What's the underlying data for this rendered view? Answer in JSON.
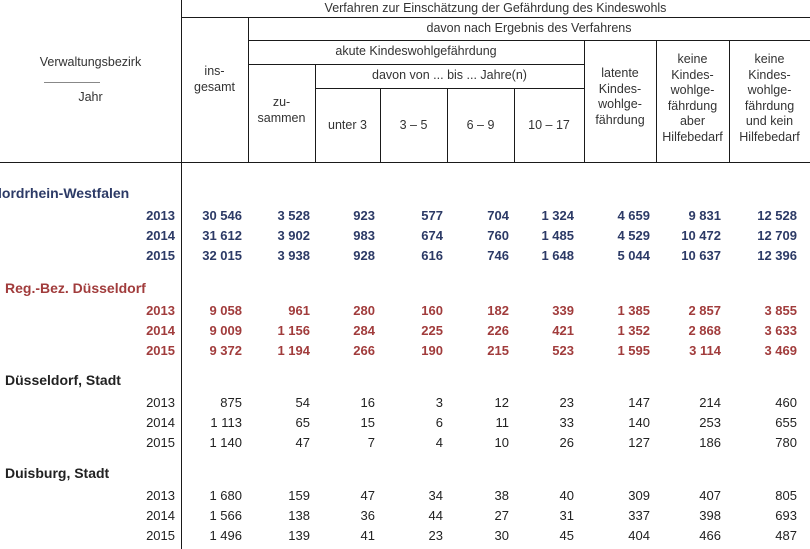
{
  "header": {
    "verwaltungsbezirk": "Verwaltungsbezirk",
    "jahr": "Jahr",
    "top": "Verfahren zur Einschätzung der Gefährdung des Kindeswohls",
    "davon_ergebnis": "davon nach Ergebnis des Verfahrens",
    "akute": "akute Kindeswohlgefährdung",
    "davon_jahre": "davon von ... bis ... Jahre(n)",
    "insgesamt": "ins-\ngesamt",
    "zusammen": "zu-\nsammen",
    "ages": [
      "unter 3",
      "3 – 5",
      "6 – 9",
      "10 – 17"
    ],
    "latente": "latente\nKindes-\nwohlge-\nfährdung",
    "keine_aber": "keine\nKindes-\nwohlge-\nfährdung\naber\nHilfebedarf",
    "keine_kein": "keine\nKindes-\nwohlge-\nfährdung\nund kein\nHilfebedarf"
  },
  "sections": [
    {
      "name": "lordrhein-Westfalen",
      "style": "blue",
      "rows": [
        {
          "year": "2013",
          "values": [
            "30 546",
            "3 528",
            "923",
            "577",
            "704",
            "1 324",
            "4 659",
            "9 831",
            "12 528"
          ]
        },
        {
          "year": "2014",
          "values": [
            "31 612",
            "3 902",
            "983",
            "674",
            "760",
            "1 485",
            "4 529",
            "10 472",
            "12 709"
          ]
        },
        {
          "year": "2015",
          "values": [
            "32 015",
            "3 938",
            "928",
            "616",
            "746",
            "1 648",
            "5 044",
            "10 637",
            "12 396"
          ]
        }
      ]
    },
    {
      "name": "Reg.-Bez. Düsseldorf",
      "style": "red",
      "rows": [
        {
          "year": "2013",
          "values": [
            "9 058",
            "961",
            "280",
            "160",
            "182",
            "339",
            "1 385",
            "2 857",
            "3 855"
          ]
        },
        {
          "year": "2014",
          "values": [
            "9 009",
            "1 156",
            "284",
            "225",
            "226",
            "421",
            "1 352",
            "2 868",
            "3 633"
          ]
        },
        {
          "year": "2015",
          "values": [
            "9 372",
            "1 194",
            "266",
            "190",
            "215",
            "523",
            "1 595",
            "3 114",
            "3 469"
          ]
        }
      ]
    },
    {
      "name": "Düsseldorf, Stadt",
      "style": "plain",
      "rows": [
        {
          "year": "2013",
          "values": [
            "875",
            "54",
            "16",
            "3",
            "12",
            "23",
            "147",
            "214",
            "460"
          ]
        },
        {
          "year": "2014",
          "values": [
            "1 113",
            "65",
            "15",
            "6",
            "11",
            "33",
            "140",
            "253",
            "655"
          ]
        },
        {
          "year": "2015",
          "values": [
            "1 140",
            "47",
            "7",
            "4",
            "10",
            "26",
            "127",
            "186",
            "780"
          ]
        }
      ]
    },
    {
      "name": "Duisburg, Stadt",
      "style": "plain",
      "rows": [
        {
          "year": "2013",
          "values": [
            "1 680",
            "159",
            "47",
            "34",
            "38",
            "40",
            "309",
            "407",
            "805"
          ]
        },
        {
          "year": "2014",
          "values": [
            "1 566",
            "138",
            "36",
            "44",
            "27",
            "31",
            "337",
            "398",
            "693"
          ]
        },
        {
          "year": "2015",
          "values": [
            "1 496",
            "139",
            "41",
            "23",
            "30",
            "45",
            "404",
            "466",
            "487"
          ]
        }
      ]
    }
  ]
}
